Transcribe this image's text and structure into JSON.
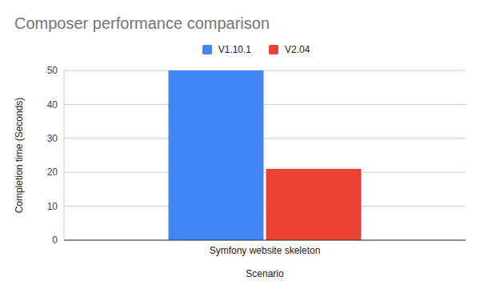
{
  "chart_data": {
    "type": "bar",
    "title": "Composer performance comparison",
    "x_label": "Scenario",
    "y_label": "Completion time (Seconds)",
    "categories": [
      "Symfony website skeleton"
    ],
    "series": [
      {
        "name": "V1.10.1",
        "color": "#4285f4",
        "values": [
          50
        ]
      },
      {
        "name": "V2.04",
        "color": "#ea4335",
        "values": [
          21
        ]
      }
    ],
    "ylim": [
      0,
      50
    ],
    "yticks": [
      0,
      10,
      20,
      30,
      40,
      50
    ],
    "grid": true,
    "legend": "top"
  }
}
